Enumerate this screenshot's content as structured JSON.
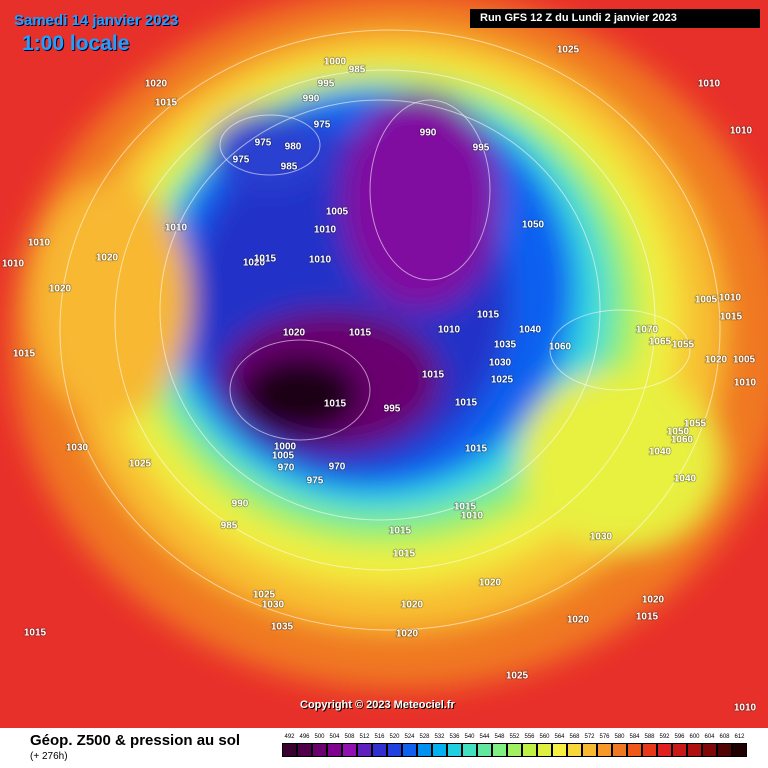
{
  "header": {
    "date": "Samedi 14 janvier 2023",
    "time": "1:00 locale",
    "run": "Run GFS 12 Z du Lundi 2 janvier 2023"
  },
  "map": {
    "pressure_labels": [
      "1000",
      "985",
      "995",
      "990",
      "975",
      "975",
      "975",
      "980",
      "985",
      "990",
      "995",
      "1005",
      "1010",
      "1010",
      "1020",
      "1015",
      "1010",
      "1050",
      "1020",
      "1015",
      "1025",
      "1010",
      "1010",
      "1010",
      "1010",
      "1020",
      "1020",
      "1015",
      "1020",
      "1015",
      "1010",
      "1015",
      "1040",
      "1035",
      "1030",
      "1025",
      "1060",
      "1070",
      "1065",
      "1055",
      "1005",
      "1010",
      "1015",
      "1020",
      "1005",
      "1010",
      "1015",
      "1015",
      "995",
      "1015",
      "1055",
      "1050",
      "1060",
      "1040",
      "1040",
      "1030",
      "1025",
      "1015",
      "990",
      "985",
      "970",
      "970",
      "975",
      "1000",
      "1005",
      "1015",
      "1010",
      "1015",
      "1015",
      "1030",
      "1020",
      "1020",
      "1020",
      "1020",
      "1015",
      "1020",
      "1025",
      "1030",
      "1035",
      "1015",
      "1025",
      "1010"
    ]
  },
  "copyright": "Copyright © 2023 Meteociel.fr",
  "footer": {
    "title": "Géop. Z500 & pression au sol",
    "lead": "(+ 276h)"
  },
  "legend": {
    "values": [
      492,
      496,
      500,
      504,
      508,
      512,
      516,
      520,
      524,
      528,
      532,
      536,
      540,
      544,
      548,
      552,
      556,
      560,
      564,
      568,
      572,
      576,
      580,
      584,
      588,
      592,
      596,
      600,
      604,
      608,
      612
    ],
    "colors": [
      "#3a0030",
      "#500048",
      "#6a0070",
      "#800090",
      "#9010b0",
      "#6020c0",
      "#3030d0",
      "#2040e0",
      "#1060f0",
      "#0090f0",
      "#00b0f0",
      "#20d0e0",
      "#40e0c0",
      "#60e8a0",
      "#80f080",
      "#a0f060",
      "#c0f040",
      "#e0f040",
      "#f8f040",
      "#f8d838",
      "#f8b830",
      "#f89828",
      "#f07820",
      "#f05818",
      "#e83818",
      "#e02020",
      "#c81818",
      "#b01010",
      "#800808",
      "#500404",
      "#200000"
    ]
  }
}
